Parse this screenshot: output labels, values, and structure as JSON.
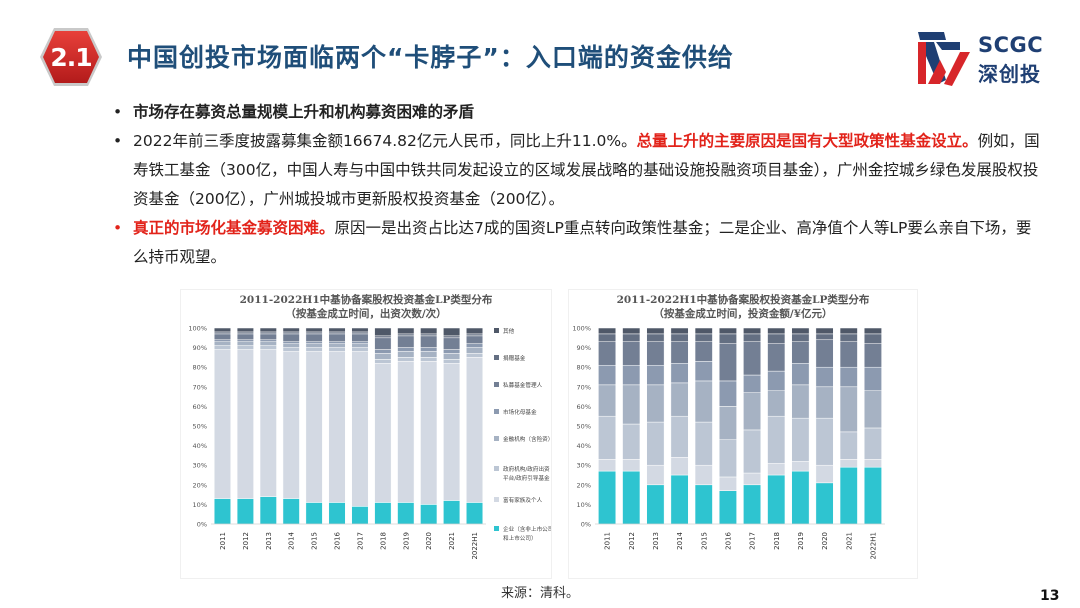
{
  "section_number": "2.1",
  "title": "中国创投市场面临两个“卡脖子”：入口端的资金供给",
  "logo": {
    "en": "SCGC",
    "cn": "深创投"
  },
  "bullets": [
    {
      "dot": "•",
      "segments": [
        {
          "text": "市场存在募资总量规模上升和机构募资困难的矛盾",
          "style": "bold"
        }
      ]
    },
    {
      "dot": "•",
      "segments": [
        {
          "text": "2022年前三季度披露募集金额16674.82亿元人民币，同比上升11.0%。",
          "style": "normal"
        },
        {
          "text": "总量上升的主要原因是国有大型政策性基金设立。",
          "style": "red-bold"
        },
        {
          "text": "例如，国寿铁工基金（300亿，中国人寿与中国中铁共同发起设立的区域发展战略的基础设施投融资项目基金），广州金控城乡绿色发展股权投资基金（200亿），广州城投城市更新股权投资基金（200亿）。",
          "style": "normal"
        }
      ]
    },
    {
      "dot": "•",
      "dot_red": true,
      "segments": [
        {
          "text": "真正的市场化基金募资困难。",
          "style": "red-bold"
        },
        {
          "text": "原因一是出资占比达7成的国资LP重点转向政策性基金；二是企业、高净值个人等LP要么亲自下场，要么持币观望。",
          "style": "normal"
        }
      ]
    }
  ],
  "chart_data": [
    {
      "type": "bar",
      "stacked": true,
      "title": "2011-2022H1中基协备案股权投资基金LP类型分布",
      "subtitle": "（按基金成立时间，出资次数/次）",
      "categories": [
        "2011",
        "2012",
        "2013",
        "2014",
        "2015",
        "2016",
        "2017",
        "2018",
        "2019",
        "2020",
        "2021",
        "2022H1"
      ],
      "ylim": [
        0,
        100
      ],
      "yticks": [
        "0%",
        "10%",
        "20%",
        "30%",
        "40%",
        "50%",
        "60%",
        "70%",
        "80%",
        "90%",
        "100%"
      ],
      "series": [
        {
          "name": "企业（含非上市公司和上市公司）",
          "color": "#2ec4d0",
          "values": [
            13,
            13,
            14,
            13,
            11,
            11,
            9,
            11,
            11,
            10,
            12,
            11
          ]
        },
        {
          "name": "富有家族及个人",
          "color": "#d3d9e3",
          "values": [
            76,
            76,
            75,
            75,
            77,
            77,
            79,
            71,
            72,
            73,
            70,
            74
          ]
        },
        {
          "name": "政府机构/政府出资平台/政府引导基金",
          "color": "#bcc6d4",
          "values": [
            2,
            2,
            2,
            2,
            2,
            2,
            2,
            2,
            2,
            2,
            2,
            2
          ]
        },
        {
          "name": "金融机构（含险资）",
          "color": "#a6b2c3",
          "values": [
            2,
            2,
            2,
            2,
            2,
            2,
            2,
            3,
            3,
            3,
            3,
            3
          ]
        },
        {
          "name": "市场化母基金",
          "color": "#8c9ab0",
          "values": [
            1,
            1,
            1,
            1,
            1,
            1,
            1,
            2,
            2,
            2,
            2,
            2
          ]
        },
        {
          "name": "私募基金管理人",
          "color": "#737f94",
          "values": [
            3,
            3,
            3,
            4,
            4,
            4,
            4,
            6,
            6,
            6,
            6,
            4
          ]
        },
        {
          "name": "捐赠基金",
          "color": "#646f82",
          "values": [
            1,
            1,
            1,
            1,
            1,
            1,
            1,
            1,
            1,
            1,
            1,
            1
          ]
        },
        {
          "name": "其他",
          "color": "#4f5868",
          "values": [
            2,
            2,
            2,
            2,
            2,
            2,
            2,
            4,
            3,
            3,
            4,
            3
          ]
        }
      ]
    },
    {
      "type": "bar",
      "stacked": true,
      "title": "2011-2022H1中基协备案股权投资基金LP类型分布",
      "subtitle": "（按基金成立时间，投资金额/¥亿元）",
      "categories": [
        "2011",
        "2012",
        "2013",
        "2014",
        "2015",
        "2016",
        "2017",
        "2018",
        "2019",
        "2020",
        "2021",
        "2022H1"
      ],
      "ylim": [
        0,
        100
      ],
      "yticks": [
        "0%",
        "10%",
        "20%",
        "30%",
        "40%",
        "50%",
        "60%",
        "70%",
        "80%",
        "90%",
        "100%"
      ],
      "series": [
        {
          "name": "企业",
          "color": "#2ec4d0",
          "values": [
            27,
            27,
            20,
            25,
            20,
            17,
            20,
            25,
            27,
            21,
            29,
            29
          ]
        },
        {
          "name": "富有家族及个人",
          "color": "#d3d9e3",
          "values": [
            6,
            6,
            10,
            9,
            10,
            7,
            6,
            6,
            5,
            9,
            4,
            4
          ]
        },
        {
          "name": "政府机构/政府出资平台/政府引导基金",
          "color": "#bcc6d4",
          "values": [
            22,
            18,
            22,
            21,
            22,
            19,
            22,
            24,
            22,
            24,
            14,
            16
          ]
        },
        {
          "name": "金融机构（含险资）",
          "color": "#a6b2c3",
          "values": [
            16,
            20,
            19,
            17,
            21,
            17,
            19,
            13,
            17,
            16,
            23,
            19
          ]
        },
        {
          "name": "市场化母基金",
          "color": "#8c9ab0",
          "values": [
            10,
            10,
            10,
            10,
            10,
            13,
            9,
            10,
            11,
            10,
            10,
            12
          ]
        },
        {
          "name": "私募基金管理人",
          "color": "#737f94",
          "values": [
            12,
            12,
            12,
            11,
            10,
            19,
            17,
            14,
            11,
            14,
            13,
            12
          ]
        },
        {
          "name": "捐赠基金",
          "color": "#646f82",
          "values": [
            4,
            4,
            4,
            4,
            4,
            5,
            4,
            5,
            4,
            3,
            4,
            5
          ]
        },
        {
          "name": "其他",
          "color": "#4f5868",
          "values": [
            3,
            3,
            3,
            3,
            3,
            3,
            3,
            3,
            3,
            3,
            3,
            3
          ]
        }
      ]
    }
  ],
  "legend_left": [
    {
      "label": "其他",
      "color": "#4f5868"
    },
    {
      "label": "捐赠基金",
      "color": "#646f82"
    },
    {
      "label": "私募基金管理人",
      "color": "#737f94"
    },
    {
      "label": "市场化母基金",
      "color": "#8c9ab0"
    },
    {
      "label": "金融机构（含险资）",
      "color": "#a6b2c3"
    },
    {
      "label": "政府机构/政府出资平台/政府引导基金",
      "color": "#bcc6d4",
      "lines": [
        "政府机构/政府出资",
        "平台/政府引导基金"
      ]
    },
    {
      "label": "富有家族及个人",
      "color": "#d3d9e3"
    },
    {
      "label": "企业（含非上市公司和上市公司）",
      "color": "#2ec4d0",
      "lines": [
        "企业（含非上市公司",
        "和上市公司）"
      ]
    }
  ],
  "source": "来源：清科。",
  "page_number": "13"
}
